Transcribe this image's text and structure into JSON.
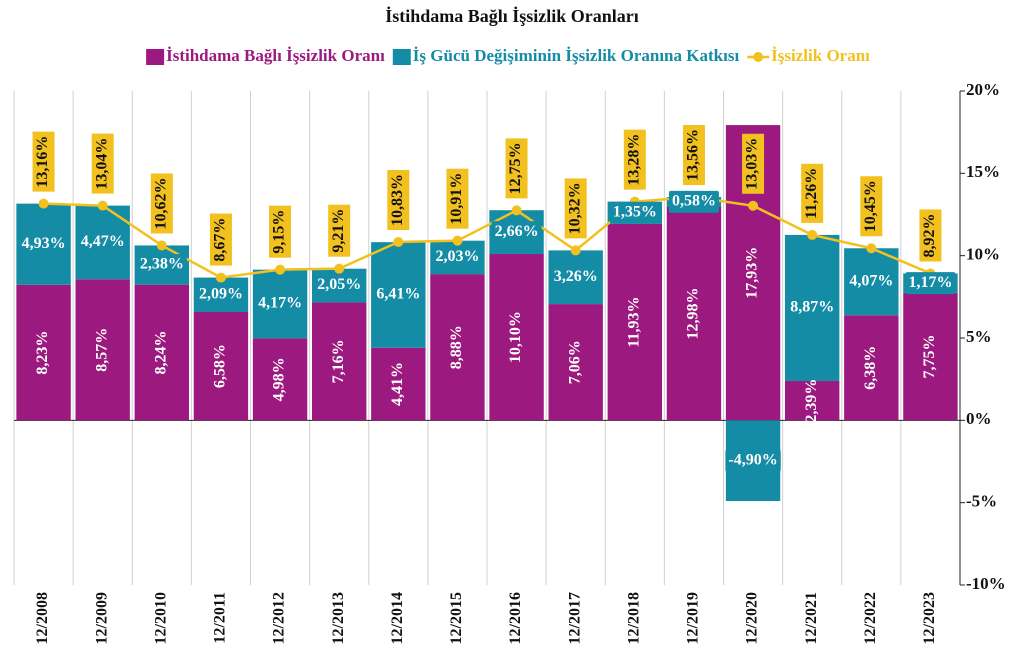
{
  "chart_data": {
    "type": "stacked-bar-line",
    "title": "İstihdama Bağlı İşsizlik Oranları",
    "categories": [
      "12/2008",
      "12/2009",
      "12/2010",
      "12/2011",
      "12/2012",
      "12/2013",
      "12/2014",
      "12/2015",
      "12/2016",
      "12/2017",
      "12/2018",
      "12/2019",
      "12/2020",
      "12/2021",
      "12/2022",
      "12/2023"
    ],
    "series": [
      {
        "name": "İstihdama Bağlı İşsizlik Oranı",
        "type": "bar",
        "color": "#9c1a80",
        "values": [
          8.23,
          8.57,
          8.24,
          6.58,
          4.98,
          7.16,
          4.41,
          8.88,
          10.1,
          7.06,
          11.93,
          12.98,
          17.93,
          2.39,
          6.38,
          7.75
        ],
        "value_labels": [
          "8,23%",
          "8,57%",
          "8,24%",
          "6,58%",
          "4,98%",
          "7,16%",
          "4,41%",
          "8,88%",
          "10,10%",
          "7,06%",
          "11,93%",
          "12,98%",
          "17,93%",
          "2,39%",
          "6,38%",
          "7,75%"
        ]
      },
      {
        "name": "İş Gücü Değişiminin İşsizlik Oranına Katkısı",
        "type": "bar",
        "color": "#148ca6",
        "values": [
          4.93,
          4.47,
          2.38,
          2.09,
          4.17,
          2.05,
          6.41,
          2.03,
          2.66,
          3.26,
          1.35,
          0.58,
          -4.9,
          8.87,
          4.07,
          1.17
        ],
        "value_labels": [
          "4,93%",
          "4,47%",
          "2,38%",
          "2,09%",
          "4,17%",
          "2,05%",
          "6,41%",
          "2,03%",
          "2,66%",
          "3,26%",
          "1,35%",
          "0,58%",
          "-4,90%",
          "8,87%",
          "4,07%",
          "1,17%"
        ]
      },
      {
        "name": "İşsizlik Oranı",
        "type": "line",
        "color": "#f2c11f",
        "values": [
          13.16,
          13.04,
          10.62,
          8.67,
          9.15,
          9.21,
          10.83,
          10.91,
          12.75,
          10.32,
          13.28,
          13.56,
          13.03,
          11.26,
          10.45,
          8.92
        ],
        "value_labels": [
          "13,16%",
          "13,04%",
          "10,62%",
          "8,67%",
          "9,15%",
          "9,21%",
          "10,83%",
          "10,91%",
          "12,75%",
          "10,32%",
          "13,28%",
          "13,56%",
          "13,03%",
          "11,26%",
          "10,45%",
          "8,92%"
        ]
      }
    ],
    "ylim": [
      -10,
      20
    ],
    "yticks": [
      {
        "value": -10,
        "label": "-10%"
      },
      {
        "value": -5,
        "label": "-5%"
      },
      {
        "value": 0,
        "label": "0%"
      },
      {
        "value": 5,
        "label": "5%"
      },
      {
        "value": 10,
        "label": "10%"
      },
      {
        "value": 15,
        "label": "15%"
      },
      {
        "value": 20,
        "label": "20%"
      }
    ],
    "axis_side": "right"
  }
}
